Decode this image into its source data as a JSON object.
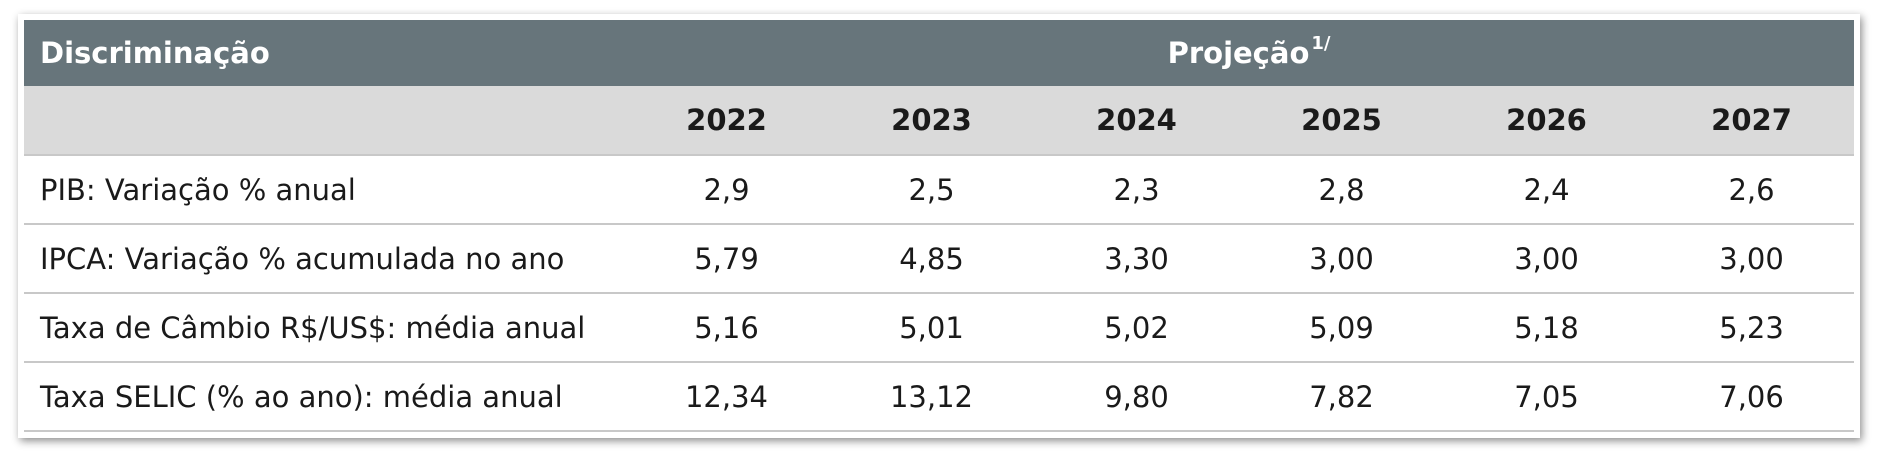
{
  "header": {
    "discriminacao": "Discriminação",
    "projecao": "Projeção",
    "projecao_footnote": "1/"
  },
  "years": [
    "2022",
    "2023",
    "2024",
    "2025",
    "2026",
    "2027"
  ],
  "rows": [
    {
      "label": "PIB: Variação % anual",
      "values": [
        "2,9",
        "2,5",
        "2,3",
        "2,8",
        "2,4",
        "2,6"
      ]
    },
    {
      "label": "IPCA: Variação % acumulada no ano",
      "values": [
        "5,79",
        "4,85",
        "3,30",
        "3,00",
        "3,00",
        "3,00"
      ]
    },
    {
      "label": "Taxa de Câmbio R$/US$: média anual",
      "values": [
        "5,16",
        "5,01",
        "5,02",
        "5,09",
        "5,18",
        "5,23"
      ]
    },
    {
      "label": "Taxa SELIC (% ao ano): média anual",
      "values": [
        "12,34",
        "13,12",
        "9,80",
        "7,82",
        "7,05",
        "7,06"
      ]
    }
  ],
  "colors": {
    "header_bg": "#67757b",
    "subheader_bg": "#dadada",
    "row_divider": "#c8c8c8"
  }
}
